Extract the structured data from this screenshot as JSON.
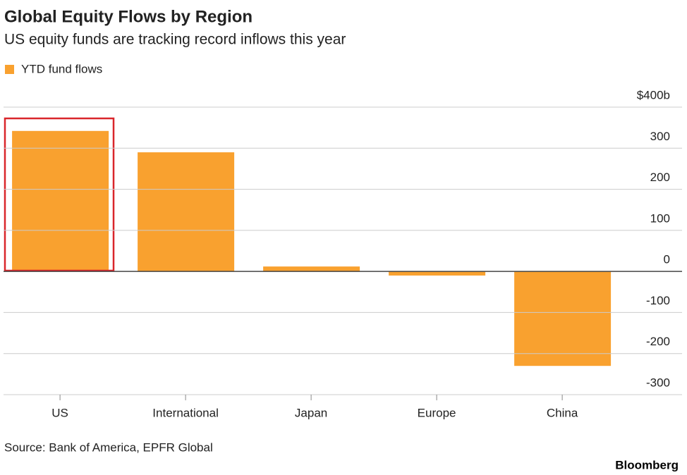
{
  "chart_data": {
    "type": "bar",
    "title": "Global Equity Flows by Region",
    "subtitle": "US equity funds are tracking record inflows this year",
    "categories": [
      "US",
      "International",
      "Japan",
      "Europe",
      "China"
    ],
    "series": [
      {
        "name": "YTD fund flows",
        "color": "#f9a12f",
        "values": [
          342,
          290,
          12,
          -10,
          -230
        ]
      }
    ],
    "ylim": [
      -300,
      400
    ],
    "yticks": [
      -300,
      -200,
      -100,
      0,
      100,
      200,
      300,
      {
        "value": 400,
        "label": "$400b"
      }
    ],
    "grid": true,
    "legend": "top-left",
    "source": "Source: Bank of America, EPFR Global",
    "logo": "Bloomberg"
  }
}
